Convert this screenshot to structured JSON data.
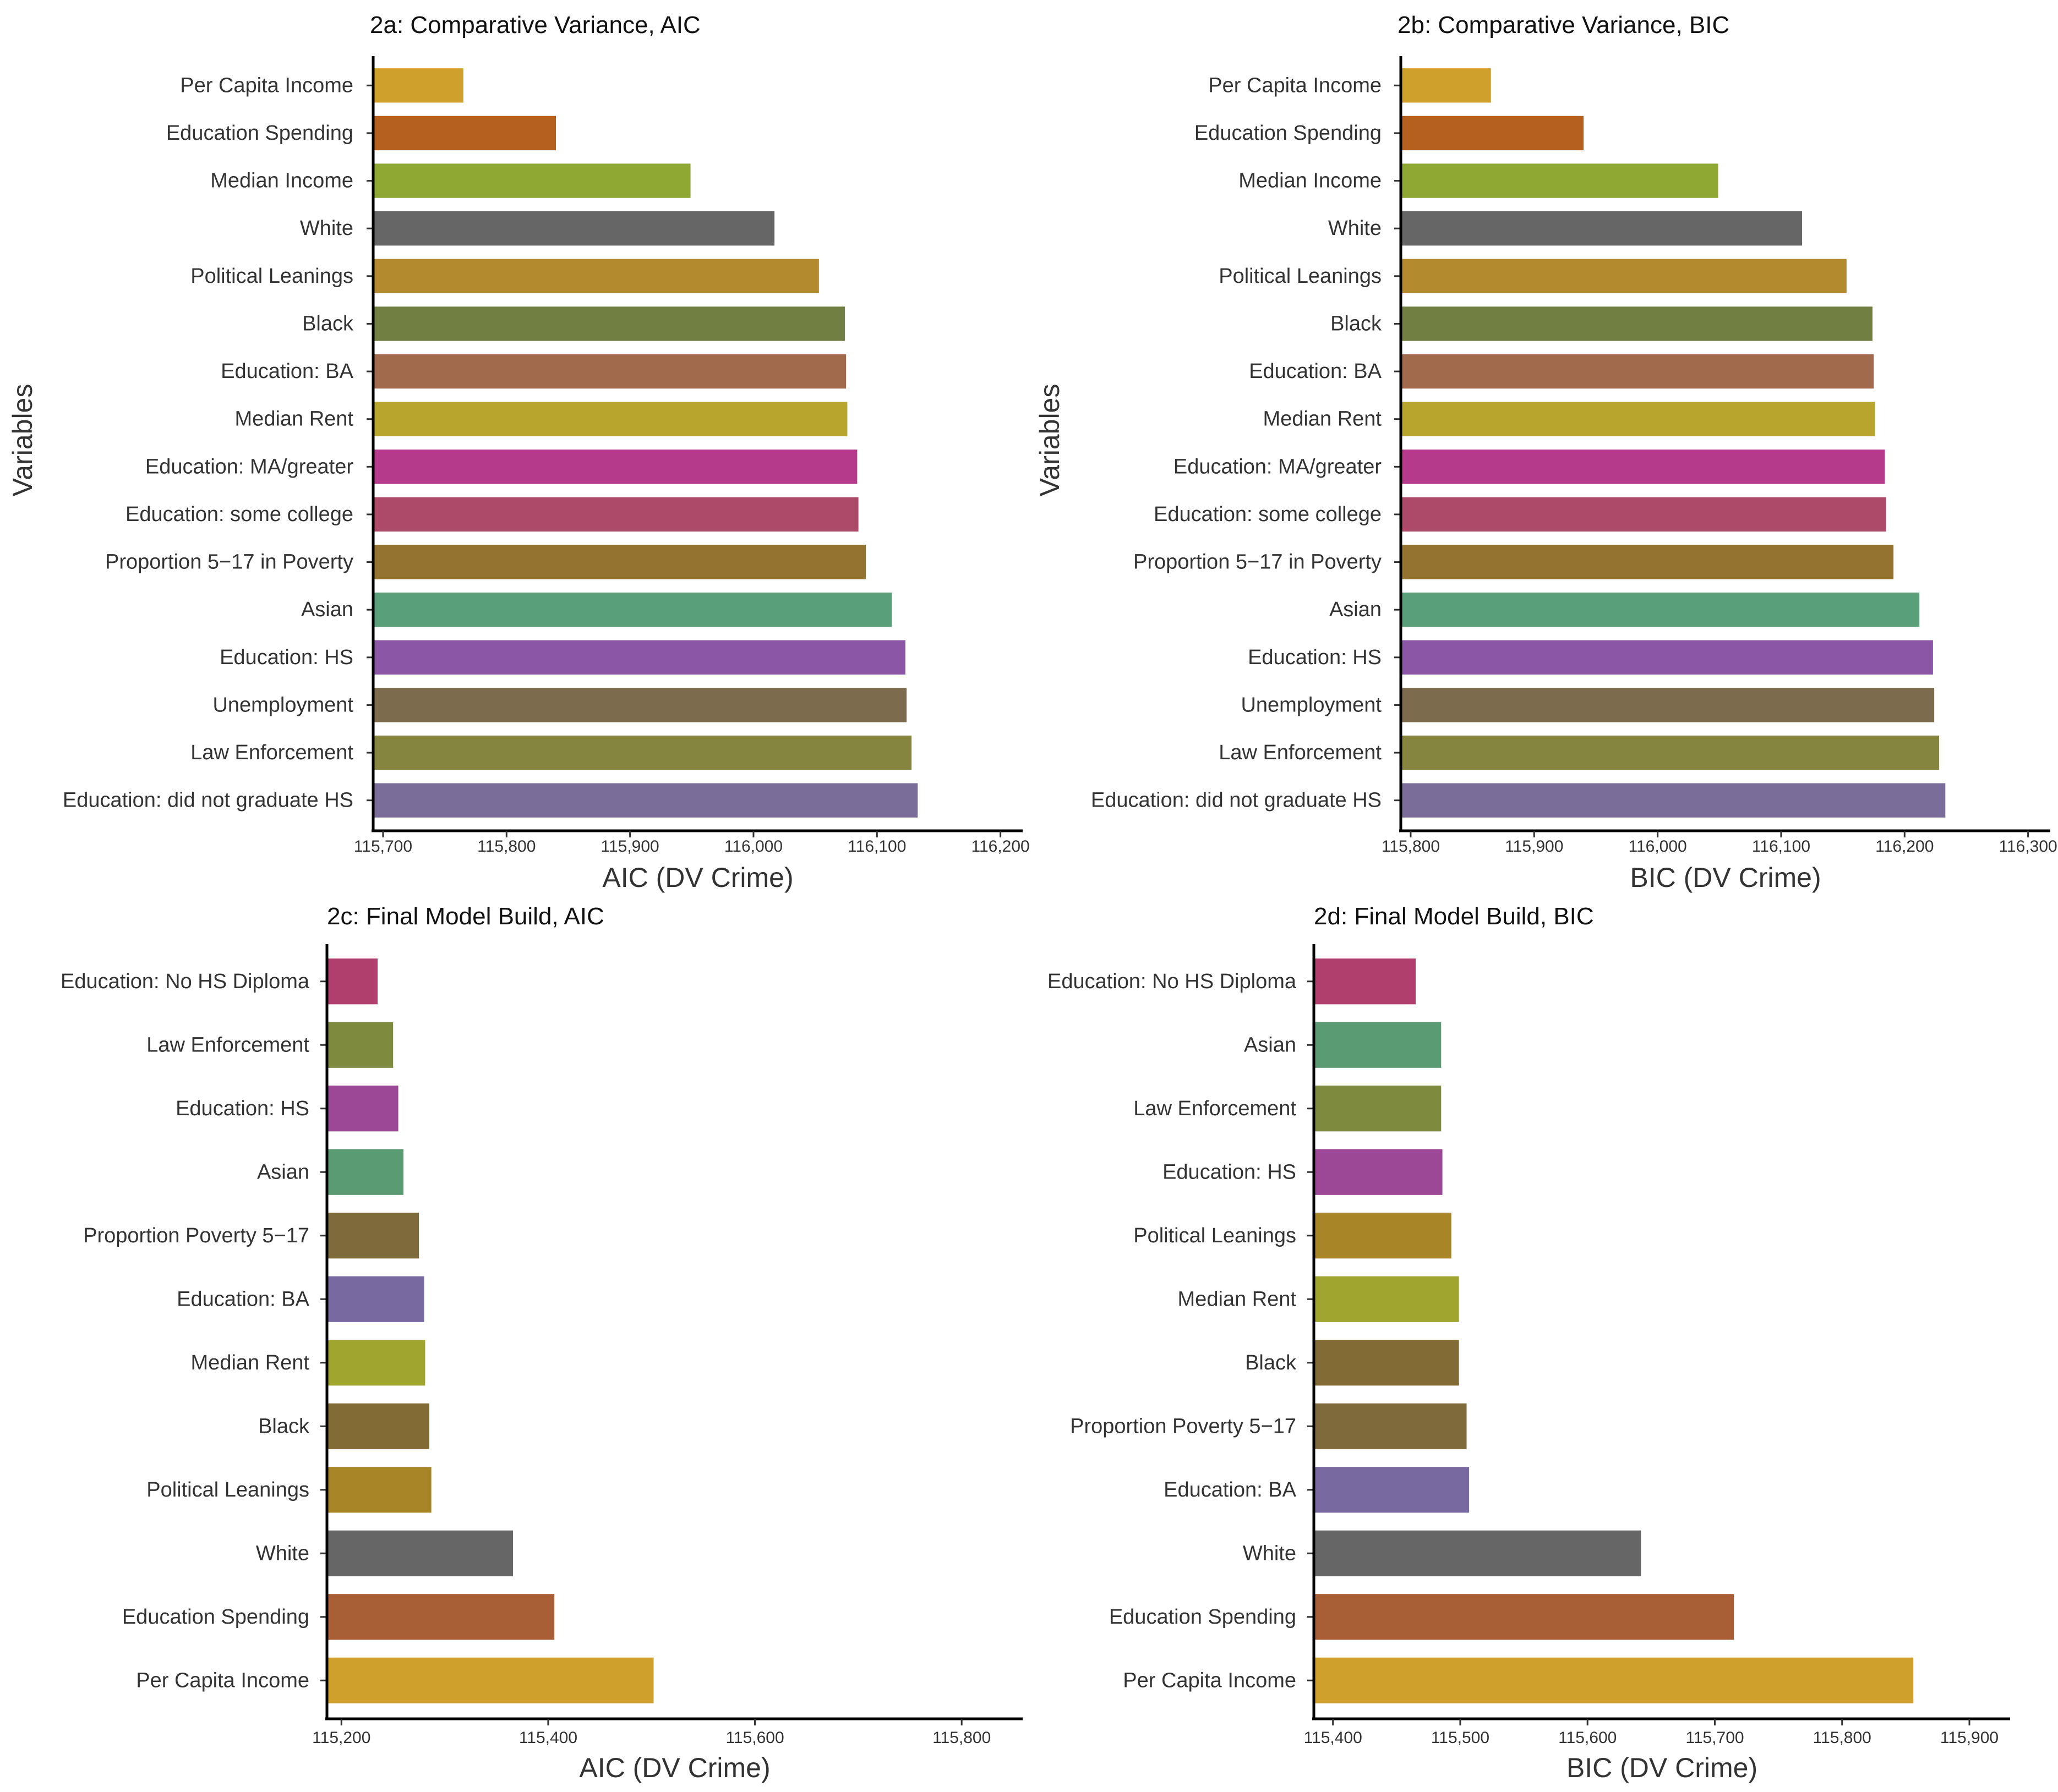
{
  "chart_data": [
    {
      "id": "2a",
      "type": "bar",
      "orientation": "horizontal",
      "title": "2a: Comparative Variance, AIC",
      "xlabel": "AIC (DV Crime)",
      "ylabel": "Variables",
      "xlim": [
        115692,
        116218
      ],
      "xticks": [
        115700,
        115800,
        115900,
        116000,
        116100,
        116200
      ],
      "xtick_labels": [
        "115,700",
        "115,800",
        "115,900",
        "116,000",
        "116,100",
        "116,200"
      ],
      "categories": [
        "Per Capita Income",
        "Education Spending",
        "Median Income",
        "White",
        "Political Leanings",
        "Black",
        "Education: BA",
        "Median Rent",
        "Education: MA/greater",
        "Education: some college",
        "Proportion 5−17 in Poverty",
        "Asian",
        "Education: HS",
        "Unemployment",
        "Law Enforcement",
        "Education: did not graduate HS"
      ],
      "values": [
        115765,
        115840,
        115949,
        116017,
        116053,
        116074,
        116075,
        116076,
        116084,
        116085,
        116091,
        116112,
        116123,
        116124,
        116128,
        116133
      ],
      "colors": [
        "#CFA12C",
        "#B5601E",
        "#8FA733",
        "#666666",
        "#B38A2E",
        "#727F42",
        "#A26A4C",
        "#B8A52E",
        "#B53A8C",
        "#AD4A6A",
        "#93732F",
        "#59A07A",
        "#8B56A6",
        "#7C6B4D",
        "#858540",
        "#7B6D9A"
      ],
      "grid": false,
      "legend": "none"
    },
    {
      "id": "2b",
      "type": "bar",
      "orientation": "horizontal",
      "title": "2b: Comparative Variance, BIC",
      "xlabel": "BIC (DV Crime)",
      "ylabel": "Variables",
      "xlim": [
        115792,
        116318
      ],
      "xticks": [
        115800,
        115900,
        116000,
        116100,
        116200,
        116300
      ],
      "xtick_labels": [
        "115,800",
        "115,900",
        "116,000",
        "116,100",
        "116,200",
        "116,300"
      ],
      "categories": [
        "Per Capita Income",
        "Education Spending",
        "Median Income",
        "White",
        "Political Leanings",
        "Black",
        "Education: BA",
        "Median Rent",
        "Education: MA/greater",
        "Education: some college",
        "Proportion 5−17 in Poverty",
        "Asian",
        "Education: HS",
        "Unemployment",
        "Law Enforcement",
        "Education: did not graduate HS"
      ],
      "values": [
        115865,
        115940,
        116049,
        116117,
        116153,
        116174,
        116175,
        116176,
        116184,
        116185,
        116191,
        116212,
        116223,
        116224,
        116228,
        116233
      ],
      "colors": [
        "#CFA12C",
        "#B5601E",
        "#8FA733",
        "#666666",
        "#B38A2E",
        "#727F42",
        "#A26A4C",
        "#B8A52E",
        "#B53A8C",
        "#AD4A6A",
        "#93732F",
        "#59A07A",
        "#8B56A6",
        "#7C6B4D",
        "#858540",
        "#7B6D9A"
      ],
      "grid": false,
      "legend": "none"
    },
    {
      "id": "2c",
      "type": "bar",
      "orientation": "horizontal",
      "title": "2c: Final Model Build, AIC",
      "xlabel": "AIC (DV Crime)",
      "ylabel": "",
      "xlim": [
        115186,
        115859
      ],
      "xticks": [
        115200,
        115400,
        115600,
        115800
      ],
      "xtick_labels": [
        "115,200",
        "115,400",
        "115,600",
        "115,800"
      ],
      "categories": [
        "Education: No HS Diploma",
        "Law Enforcement",
        "Education: HS",
        "Asian",
        "Proportion Poverty 5−17",
        "Education: BA",
        "Median Rent",
        "Black",
        "Political Leanings",
        "White",
        "Education Spending",
        "Per Capita Income"
      ],
      "values": [
        115235,
        115250,
        115255,
        115260,
        115275,
        115280,
        115281,
        115285,
        115287,
        115366,
        115406,
        115502
      ],
      "colors": [
        "#B03F6E",
        "#7E8A3D",
        "#9D4897",
        "#5A9B73",
        "#7E6A3A",
        "#786AA0",
        "#A0A52F",
        "#836B35",
        "#A88527",
        "#666666",
        "#A95F36",
        "#CFA12C"
      ],
      "grid": false,
      "legend": "none"
    },
    {
      "id": "2d",
      "type": "bar",
      "orientation": "horizontal",
      "title": "2d: Final Model Build, BIC",
      "xlabel": "BIC (DV Crime)",
      "ylabel": "",
      "xlim": [
        115385,
        115932
      ],
      "xticks": [
        115400,
        115500,
        115600,
        115700,
        115800,
        115900
      ],
      "xtick_labels": [
        "115,400",
        "115,500",
        "115,600",
        "115,700",
        "115,800",
        "115,900"
      ],
      "categories": [
        "Education: No HS Diploma",
        "Asian",
        "Law Enforcement",
        "Education: HS",
        "Political Leanings",
        "Median Rent",
        "Black",
        "Proportion Poverty 5−17",
        "Education: BA",
        "White",
        "Education Spending",
        "Per Capita Income"
      ],
      "values": [
        115465,
        115485,
        115485,
        115486,
        115493,
        115499,
        115499,
        115505,
        115507,
        115642,
        115715,
        115856
      ],
      "colors": [
        "#B03F6E",
        "#5A9B73",
        "#7E8A3D",
        "#9D4897",
        "#A88527",
        "#A0A52F",
        "#836B35",
        "#7E6A3A",
        "#786AA0",
        "#666666",
        "#A95F36",
        "#CFA12C"
      ],
      "grid": false,
      "legend": "none"
    }
  ]
}
